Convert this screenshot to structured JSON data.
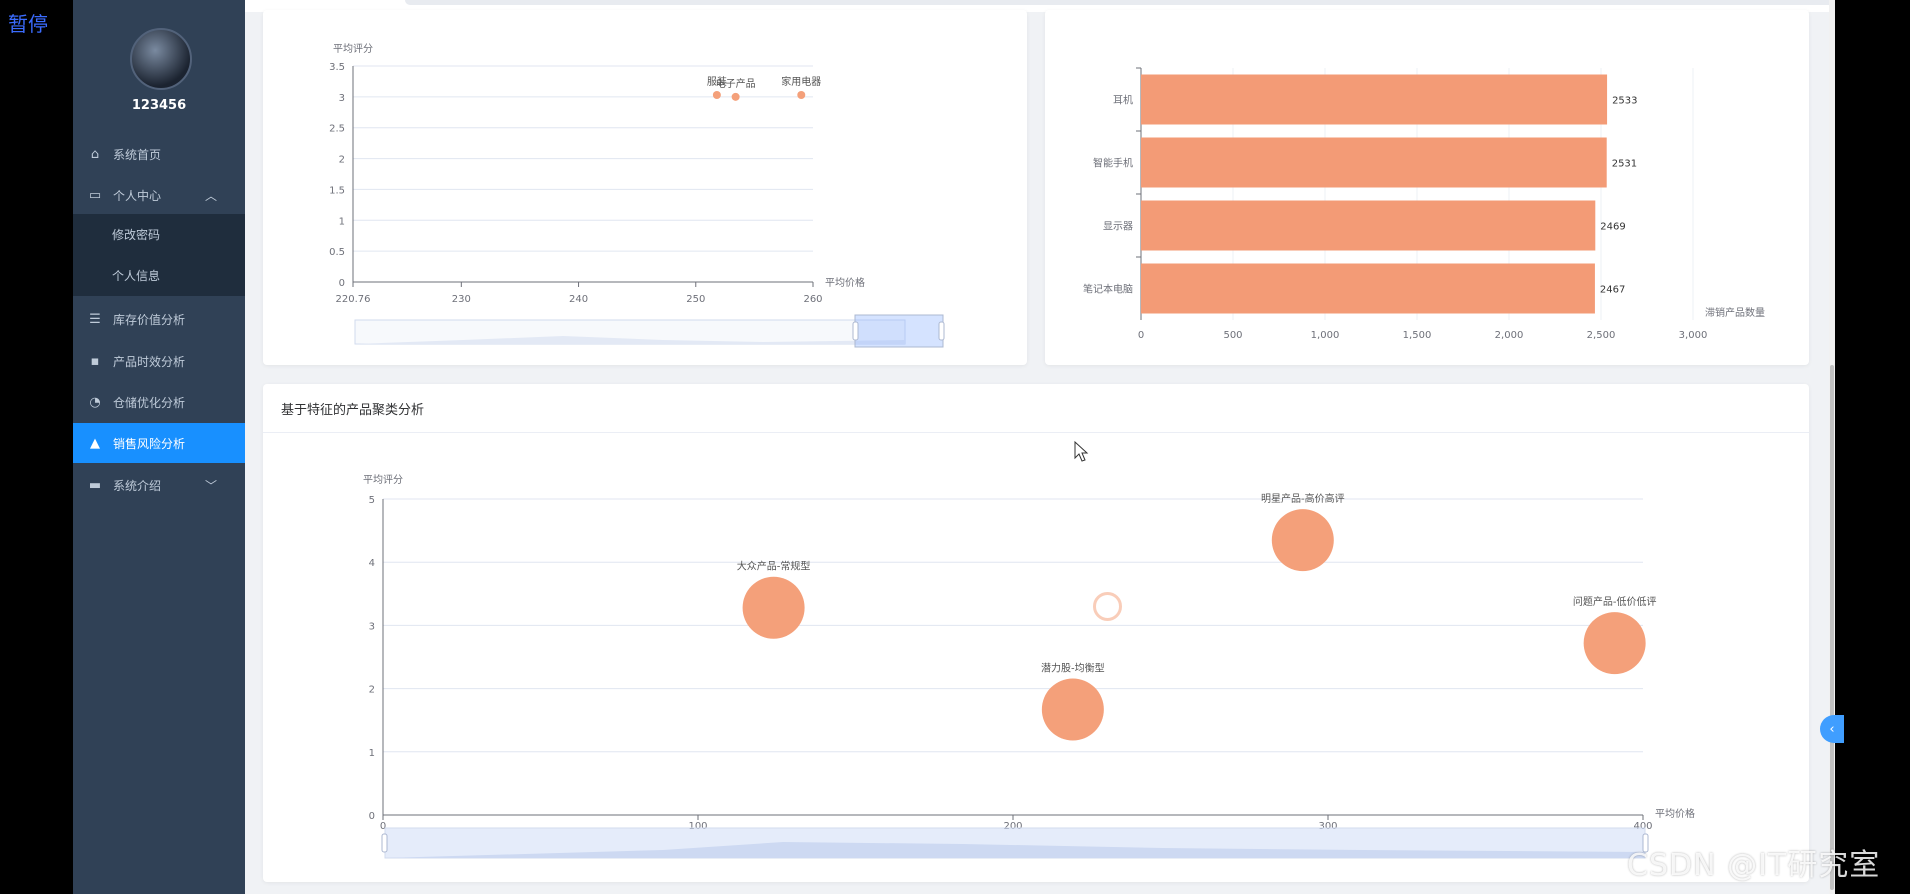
{
  "overlay": {
    "pause_label": "暂停",
    "watermark": "CSDN @IT研究室"
  },
  "sidebar": {
    "username": "123456",
    "items": [
      {
        "label": "系统首页",
        "icon": "home-icon"
      },
      {
        "label": "个人中心",
        "icon": "id-card-icon",
        "expanded": true
      },
      {
        "label": "库存价值分析",
        "icon": "list-icon"
      },
      {
        "label": "产品时效分析",
        "icon": "comment-icon"
      },
      {
        "label": "仓储优化分析",
        "icon": "dashboard-icon"
      },
      {
        "label": "销售风险分析",
        "icon": "trend-icon",
        "active": true
      },
      {
        "label": "系统介绍",
        "icon": "briefcase-icon",
        "expandable": true
      }
    ],
    "submenu": [
      {
        "label": "修改密码"
      },
      {
        "label": "个人信息"
      }
    ]
  },
  "cards": {
    "cluster_title": "基于特征的产品聚类分析"
  },
  "chart_data": [
    {
      "type": "scatter",
      "ylabel": "平均评分",
      "xlabel": "平均价格",
      "ylim": [
        0,
        3.5
      ],
      "yticks": [
        0,
        0.5,
        1,
        1.5,
        2,
        2.5,
        3,
        3.5
      ],
      "xlim": [
        220.76,
        260
      ],
      "xticks": [
        220.76,
        230,
        240,
        250,
        260
      ],
      "points": [
        {
          "label": "服装",
          "x": 251.8,
          "y": 3.03
        },
        {
          "label": "电子产品",
          "x": 253.4,
          "y": 3.0
        },
        {
          "label": "家用电器",
          "x": 259.0,
          "y": 3.03
        }
      ],
      "datazoom": true
    },
    {
      "type": "bar",
      "orientation": "horizontal",
      "xlabel": "滞销产品数量",
      "xlim": [
        0,
        3000
      ],
      "xticks": [
        0,
        500,
        1000,
        1500,
        2000,
        2500,
        3000
      ],
      "xtick_labels": [
        "0",
        "500",
        "1,000",
        "1,500",
        "2,000",
        "2,500",
        "3,000"
      ],
      "categories": [
        "耳机",
        "智能手机",
        "显示器",
        "笔记本电脑"
      ],
      "values": [
        2533,
        2531,
        2469,
        2467
      ]
    },
    {
      "type": "scatter",
      "title": "基于特征的产品聚类分析",
      "ylabel": "平均评分",
      "xlabel": "平均价格",
      "ylim": [
        0,
        5
      ],
      "yticks": [
        0,
        1,
        2,
        3,
        4,
        5
      ],
      "xlim": [
        0,
        400
      ],
      "xticks": [
        0,
        100,
        200,
        300,
        400
      ],
      "points": [
        {
          "label": "大众产品-常规型",
          "x": 124,
          "y": 3.28
        },
        {
          "label": "潜力股-均衡型",
          "x": 219,
          "y": 1.67
        },
        {
          "label": "明星产品-高价高评",
          "x": 292,
          "y": 4.35
        },
        {
          "label": "问题产品-低价低评",
          "x": 391,
          "y": 2.72
        },
        {
          "label": "",
          "x": 230,
          "y": 3.3,
          "hollow": true
        }
      ],
      "datazoom": true
    }
  ]
}
